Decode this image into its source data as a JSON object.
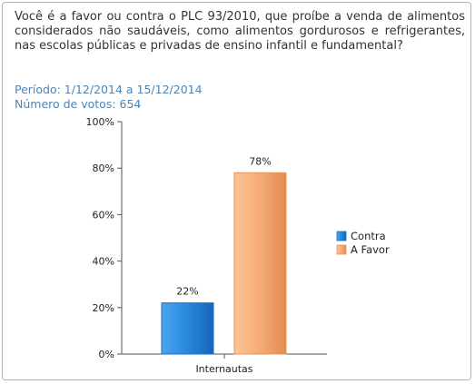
{
  "poll": {
    "question": "Você é a favor ou contra o PLC 93/2010, que proíbe a venda de alimentos considerados não saudáveis, como alimentos gordurosos e refrigerantes, nas escolas públicas e privadas de ensino infantil e fundamental?",
    "period": "Período: 1/12/2014 a 15/12/2014",
    "votes": "Número de votos: 654"
  },
  "chart_data": {
    "type": "bar",
    "categories": [
      "Internautas"
    ],
    "series": [
      {
        "name": "Contra",
        "values": [
          22
        ],
        "label": "22%",
        "color": "#2e8ad8"
      },
      {
        "name": "A Favor",
        "values": [
          78
        ],
        "label": "78%",
        "color": "#f7ad78"
      }
    ],
    "ylim": [
      0,
      100
    ],
    "yticks": [
      "0%",
      "20%",
      "40%",
      "60%",
      "80%",
      "100%"
    ],
    "ytick_values": [
      0,
      20,
      40,
      60,
      80,
      100
    ],
    "grid": false,
    "legend": "right"
  }
}
